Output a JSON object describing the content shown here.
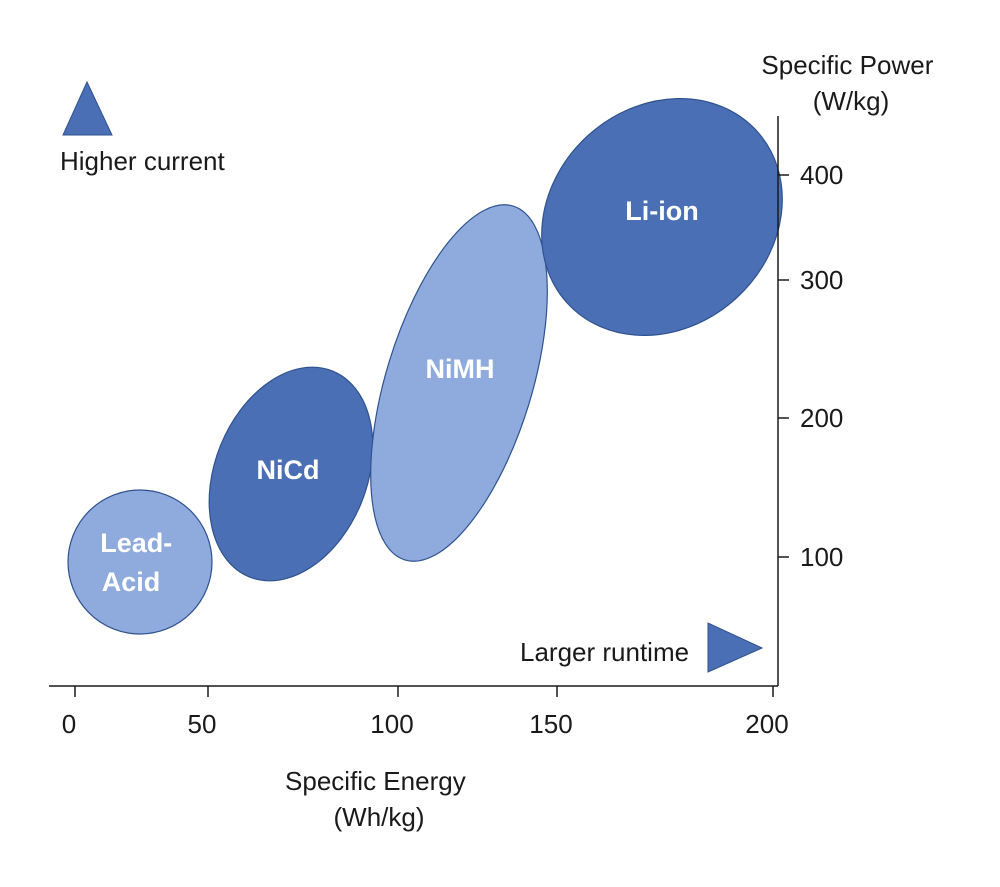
{
  "chart_data": {
    "type": "scatter",
    "x_axis": {
      "label": [
        "Specific Energy",
        "(Wh/kg)"
      ],
      "ticks": [
        0,
        50,
        100,
        150,
        200
      ],
      "range": [
        0,
        200
      ]
    },
    "y_axis": {
      "label": [
        "Specific Power",
        "(W/kg)"
      ],
      "ticks": [
        100,
        200,
        300,
        400
      ],
      "position": "right"
    },
    "regions": [
      {
        "name": "Lead-Acid",
        "label_lines": [
          "Lead-",
          "Acid"
        ],
        "energy_range": [
          0,
          45
        ],
        "power_range": [
          40,
          140
        ],
        "color": "#8faadc"
      },
      {
        "name": "NiCd",
        "label_lines": [
          "NiCd"
        ],
        "energy_range": [
          45,
          95
        ],
        "power_range": [
          80,
          235
        ],
        "color": "#4a6fb5"
      },
      {
        "name": "NiMH",
        "label_lines": [
          "NiMH"
        ],
        "energy_range": [
          95,
          150
        ],
        "power_range": [
          105,
          365
        ],
        "color": "#8faadc"
      },
      {
        "name": "Li-ion",
        "label_lines": [
          "Li-ion"
        ],
        "energy_range": [
          150,
          200
        ],
        "power_range": [
          255,
          450
        ],
        "color": "#4a6fb5"
      }
    ],
    "annotations": {
      "higher_current": "Higher current",
      "larger_runtime": "Larger runtime"
    },
    "colors": {
      "dark_blue": "#4a6fb5",
      "light_blue": "#8faadc",
      "axis": "#1a1a1a",
      "outline": "#2f528f"
    }
  }
}
